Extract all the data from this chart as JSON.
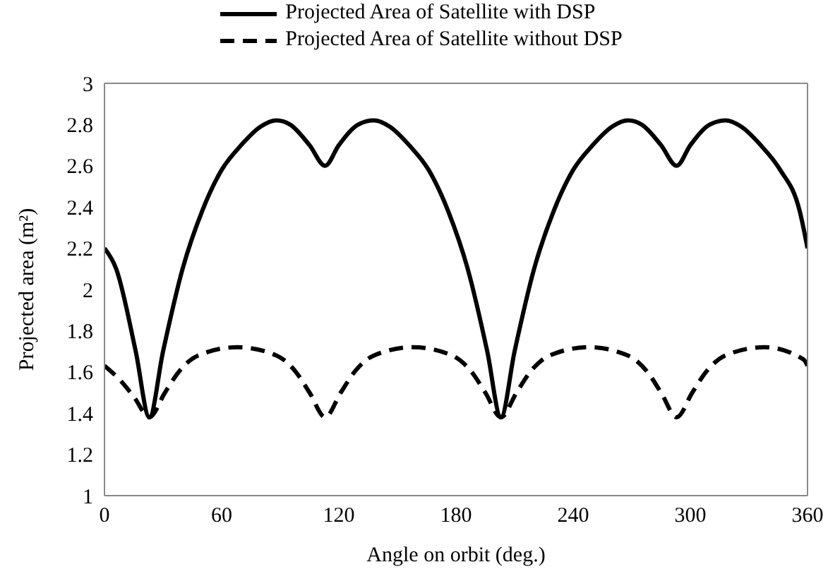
{
  "chart_data": {
    "type": "line",
    "xlabel": "Angle on orbit (deg.)",
    "ylabel": "Projected area (m²)",
    "xlim": [
      0,
      360
    ],
    "xticks": [
      0,
      60,
      120,
      180,
      240,
      300,
      360
    ],
    "ylim": [
      1,
      3
    ],
    "yticks": [
      1,
      1.2,
      1.4,
      1.6,
      1.8,
      2,
      2.2,
      2.4,
      2.6,
      2.8,
      3
    ],
    "legend": "top",
    "marker": "none",
    "series": [
      {
        "name": "Projected Area of Satellite with DSP",
        "color": "#000000",
        "line_style": "solid",
        "x": [
          0,
          6,
          16,
          23,
          30,
          40,
          50,
          60,
          70,
          80,
          88,
          95,
          105,
          113,
          120,
          130,
          138,
          146,
          156,
          166,
          176,
          186,
          196,
          203,
          210,
          220,
          230,
          240,
          250,
          260,
          268,
          275,
          285,
          293,
          300,
          310,
          318,
          326,
          336,
          346,
          356,
          360
        ],
        "values": [
          2.2,
          2.1,
          1.7,
          1.38,
          1.7,
          2.1,
          2.38,
          2.58,
          2.7,
          2.79,
          2.82,
          2.8,
          2.7,
          2.6,
          2.7,
          2.8,
          2.82,
          2.79,
          2.7,
          2.58,
          2.38,
          2.1,
          1.7,
          1.38,
          1.7,
          2.1,
          2.38,
          2.58,
          2.7,
          2.79,
          2.82,
          2.8,
          2.7,
          2.6,
          2.7,
          2.8,
          2.82,
          2.79,
          2.7,
          2.58,
          2.38,
          2.2
        ]
      },
      {
        "name": "Projected Area of Satellite without DSP",
        "color": "#000000",
        "line_style": "dashed",
        "x": [
          0,
          8,
          15,
          23,
          31,
          38,
          48,
          68,
          88,
          98,
          105,
          113,
          121,
          128,
          138,
          158,
          178,
          188,
          195,
          203,
          211,
          218,
          228,
          248,
          268,
          278,
          285,
          293,
          301,
          308,
          318,
          338,
          358,
          360
        ],
        "values": [
          1.63,
          1.56,
          1.48,
          1.38,
          1.5,
          1.6,
          1.68,
          1.72,
          1.68,
          1.6,
          1.5,
          1.38,
          1.5,
          1.6,
          1.68,
          1.72,
          1.68,
          1.6,
          1.5,
          1.38,
          1.5,
          1.6,
          1.68,
          1.72,
          1.68,
          1.6,
          1.5,
          1.38,
          1.5,
          1.6,
          1.68,
          1.72,
          1.66,
          1.63
        ]
      }
    ]
  }
}
